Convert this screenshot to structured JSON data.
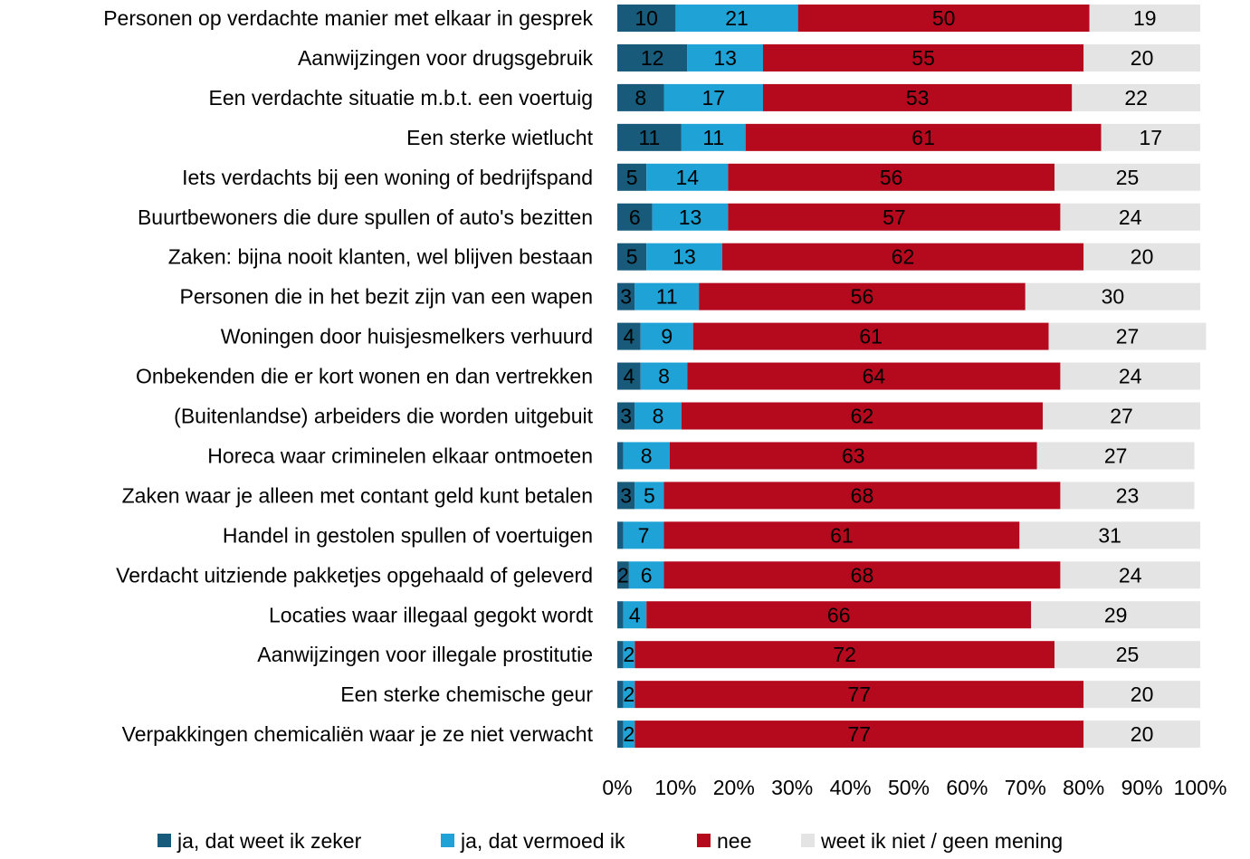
{
  "chart_data": {
    "type": "stacked_barh",
    "categories": [
      "Personen op verdachte manier met elkaar in gesprek",
      "Aanwijzingen voor drugsgebruik",
      "Een verdachte situatie m.b.t. een voertuig",
      "Een sterke wietlucht",
      "Iets verdachts bij een woning of bedrijfspand",
      "Buurtbewoners die dure spullen of auto's bezitten",
      "Zaken: bijna nooit klanten, wel blijven bestaan",
      "Personen die in het bezit zijn van een wapen",
      "Woningen door huisjesmelkers verhuurd",
      "Onbekenden die er kort wonen en dan vertrekken",
      "(Buitenlandse) arbeiders die worden uitgebuit",
      "Horeca waar criminelen elkaar ontmoeten",
      "Zaken waar je alleen met contant geld kunt betalen",
      "Handel in gestolen spullen of voertuigen",
      "Verdacht uitziende pakketjes opgehaald of geleverd",
      "Locaties waar illegaal gegokt wordt",
      "Aanwijzingen voor illegale prostitutie",
      "Een sterke chemische geur",
      "Verpakkingen chemicaliën waar je ze niet verwacht"
    ],
    "series": [
      {
        "name": "ja, dat weet ik zeker",
        "color": "#175a7a",
        "label_color": "#ffffff",
        "values": [
          10,
          12,
          8,
          11,
          5,
          6,
          5,
          3,
          4,
          4,
          3,
          1,
          3,
          1,
          2,
          1,
          1,
          1,
          1
        ],
        "value_labels": [
          10,
          12,
          8,
          11,
          5,
          6,
          5,
          3,
          4,
          4,
          3,
          null,
          3,
          null,
          2,
          null,
          null,
          null,
          null
        ]
      },
      {
        "name": "ja, dat vermoed ik",
        "color": "#1fa3d6",
        "label_color": "#ffffff",
        "values": [
          21,
          13,
          17,
          11,
          14,
          13,
          13,
          11,
          9,
          8,
          8,
          8,
          5,
          7,
          6,
          4,
          2,
          2,
          2
        ]
      },
      {
        "name": "nee",
        "color": "#b5091e",
        "label_color": "#ffffff",
        "values": [
          50,
          55,
          53,
          61,
          56,
          57,
          62,
          56,
          61,
          64,
          62,
          63,
          68,
          61,
          68,
          66,
          72,
          77,
          77
        ]
      },
      {
        "name": "weet ik niet / geen mening",
        "color": "#e4e4e4",
        "label_color": "#404040",
        "values": [
          19,
          20,
          22,
          17,
          25,
          24,
          20,
          30,
          27,
          24,
          27,
          27,
          23,
          31,
          24,
          29,
          25,
          20,
          20
        ]
      }
    ],
    "xlim": [
      0,
      100
    ],
    "xticks": [
      {
        "value": 0,
        "label": "0%"
      },
      {
        "value": 10,
        "label": "10%"
      },
      {
        "value": 20,
        "label": "20%"
      },
      {
        "value": 30,
        "label": "30%"
      },
      {
        "value": 40,
        "label": "40%"
      },
      {
        "value": 50,
        "label": "50%"
      },
      {
        "value": 60,
        "label": "60%"
      },
      {
        "value": 70,
        "label": "70%"
      },
      {
        "value": 80,
        "label": "80%"
      },
      {
        "value": 90,
        "label": "90%"
      },
      {
        "value": 100,
        "label": "100%"
      }
    ],
    "legend": "bottom"
  }
}
